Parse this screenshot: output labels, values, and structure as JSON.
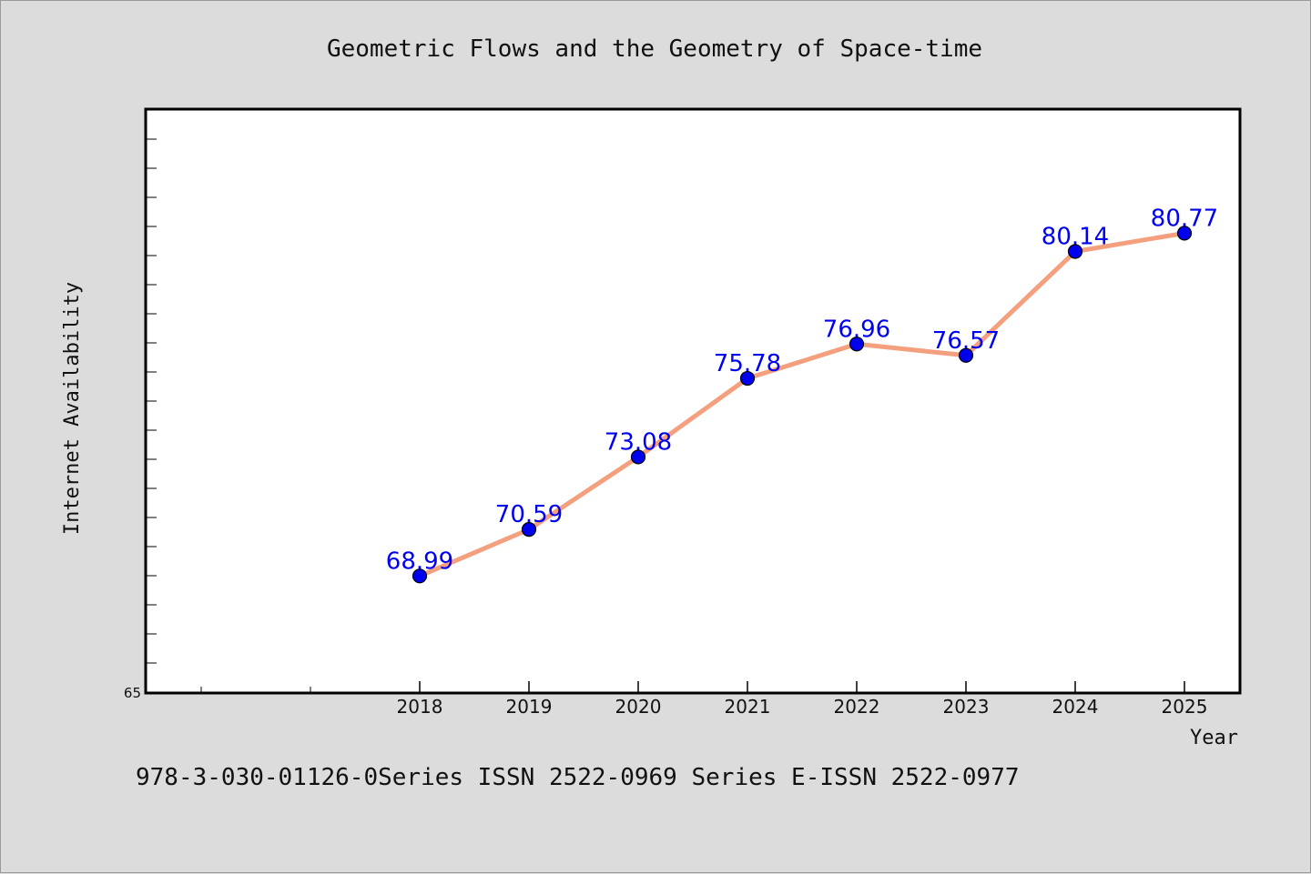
{
  "chart_data": {
    "type": "line",
    "title": "Geometric Flows and the Geometry of Space-time",
    "xlabel": "Year",
    "ylabel": "Internet Availability",
    "x": [
      "2018",
      "2019",
      "2020",
      "2021",
      "2022",
      "2023",
      "2024",
      "2025"
    ],
    "series": [
      {
        "values": [
          68.99,
          70.59,
          73.08,
          75.78,
          76.96,
          76.57,
          80.14,
          80.77
        ]
      }
    ],
    "y_tick_labels": [
      "65"
    ],
    "ylim": [
      65,
      85
    ],
    "grid": false,
    "legend": "none",
    "line_color": "#f4a07f",
    "marker_color": "#0000ee",
    "label_color": "#0000ee"
  },
  "footer": {
    "text": "978-3-030-01126-0Series ISSN 2522-0969 Series E-ISSN 2522-0977"
  }
}
